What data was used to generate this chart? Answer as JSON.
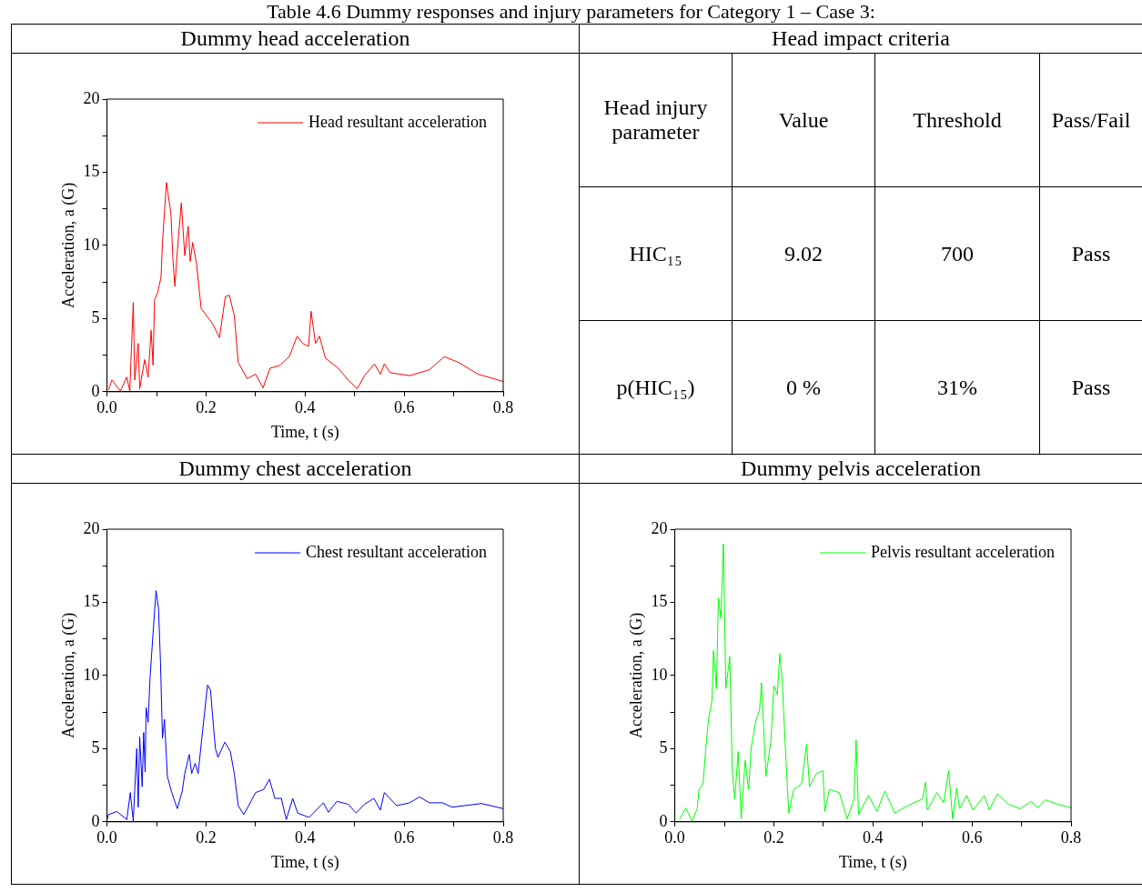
{
  "chart_data": [
    {
      "type": "other",
      "title": "Table 4.6 Dummy responses and injury parameters for Category 1 – Case 3:"
    },
    {
      "type": "line",
      "title": "Dummy head acceleration",
      "xlabel": "Time, t (s)",
      "ylabel": "Acceleration, a (G)",
      "xlim": [
        0,
        0.8
      ],
      "ylim": [
        0,
        20
      ],
      "xticks": [
        {
          "value": 0,
          "label": "0.0"
        },
        {
          "value": 0.1,
          "label": null
        },
        0.2,
        {
          "value": 0.3,
          "label": null
        },
        0.4,
        {
          "value": 0.5,
          "label": null
        },
        0.6,
        {
          "value": 0.7,
          "label": null
        },
        0.8
      ],
      "yticks": [
        0,
        {
          "value": 2.5,
          "label": null
        },
        5,
        {
          "value": 7.5,
          "label": null
        },
        10,
        {
          "value": 12.5,
          "label": null
        },
        15,
        {
          "value": 17.5,
          "label": null
        },
        20
      ],
      "grid": false,
      "legend": "top right",
      "series": [
        {
          "name": "Head resultant acceleration",
          "color": "#ff0000",
          "x": [
            0.003,
            0.01,
            0.027,
            0.04,
            0.046,
            0.053,
            0.056,
            0.063,
            0.066,
            0.076,
            0.083,
            0.089,
            0.093,
            0.096,
            0.102,
            0.109,
            0.112,
            0.12,
            0.129,
            0.133,
            0.137,
            0.142,
            0.15,
            0.157,
            0.164,
            0.168,
            0.173,
            0.181,
            0.19,
            0.201,
            0.214,
            0.227,
            0.239,
            0.247,
            0.257,
            0.265,
            0.283,
            0.3,
            0.315,
            0.329,
            0.349,
            0.368,
            0.384,
            0.395,
            0.407,
            0.412,
            0.421,
            0.429,
            0.441,
            0.467,
            0.487,
            0.505,
            0.52,
            0.54,
            0.552,
            0.56,
            0.572,
            0.611,
            0.651,
            0.681,
            0.71,
            0.749,
            0.8
          ],
          "values": [
            0.15,
            0.8,
            0.05,
            1.0,
            0.05,
            6.1,
            0.8,
            3.3,
            0.2,
            2.2,
            1.0,
            4.2,
            1.8,
            6.3,
            6.75,
            7.8,
            10.2,
            14.3,
            12.2,
            9.1,
            7.2,
            9.6,
            12.9,
            9.3,
            11.3,
            8.9,
            10.2,
            8.7,
            5.7,
            5.2,
            4.6,
            3.7,
            6.5,
            6.6,
            5.2,
            2.0,
            0.9,
            1.2,
            0.26,
            1.6,
            1.8,
            2.4,
            3.8,
            3.3,
            3.1,
            5.5,
            3.3,
            3.8,
            2.3,
            1.6,
            0.8,
            0.2,
            1.1,
            1.9,
            1.2,
            1.9,
            1.3,
            1.1,
            1.5,
            2.4,
            2.0,
            1.2,
            0.7
          ]
        }
      ]
    },
    {
      "type": "other",
      "title": "Head impact criteria",
      "annotations": [
        "Head injury parameter",
        "Value",
        "Threshold",
        "Pass/Fail",
        "HIC₁₅",
        "9.02",
        "700",
        "Pass",
        "p(HIC₁₅)",
        "0 %",
        "31%",
        "Pass"
      ]
    },
    {
      "type": "line",
      "title": "Dummy chest acceleration",
      "xlabel": "Time, t (s)",
      "ylabel": "Acceleration, a (G)",
      "xlim": [
        0,
        0.8
      ],
      "ylim": [
        0,
        20
      ],
      "xticks": [
        {
          "value": 0,
          "label": "0.0"
        },
        {
          "value": 0.1,
          "label": null
        },
        0.2,
        {
          "value": 0.3,
          "label": null
        },
        0.4,
        {
          "value": 0.5,
          "label": null
        },
        0.6,
        {
          "value": 0.7,
          "label": null
        },
        0.8
      ],
      "yticks": [
        0,
        {
          "value": 2.5,
          "label": null
        },
        5,
        {
          "value": 7.5,
          "label": null
        },
        10,
        {
          "value": 12.5,
          "label": null
        },
        15,
        {
          "value": 17.5,
          "label": null
        },
        20
      ],
      "grid": false,
      "legend": "top right",
      "series": [
        {
          "name": "Chest resultant acceleration",
          "color": "#0000ff",
          "x": [
            0.0,
            0.003,
            0.02,
            0.04,
            0.047,
            0.053,
            0.06,
            0.063,
            0.066,
            0.071,
            0.074,
            0.077,
            0.079,
            0.083,
            0.087,
            0.094,
            0.099,
            0.104,
            0.108,
            0.112,
            0.116,
            0.122,
            0.129,
            0.135,
            0.142,
            0.152,
            0.157,
            0.166,
            0.171,
            0.178,
            0.184,
            0.193,
            0.203,
            0.209,
            0.215,
            0.219,
            0.224,
            0.238,
            0.249,
            0.257,
            0.265,
            0.276,
            0.286,
            0.3,
            0.316,
            0.328,
            0.339,
            0.352,
            0.362,
            0.375,
            0.385,
            0.408,
            0.437,
            0.447,
            0.464,
            0.487,
            0.503,
            0.52,
            0.539,
            0.552,
            0.56,
            0.585,
            0.611,
            0.631,
            0.651,
            0.677,
            0.697,
            0.756,
            0.8
          ],
          "values": [
            0.15,
            0.5,
            0.7,
            0.15,
            2.0,
            0.05,
            5.0,
            1.0,
            5.8,
            2.4,
            6.1,
            3.4,
            7.8,
            6.8,
            9.9,
            13.4,
            15.8,
            14.6,
            10.9,
            5.7,
            7.0,
            3.1,
            2.2,
            1.56,
            0.9,
            2.1,
            3.3,
            4.6,
            3.3,
            4.0,
            3.3,
            6.2,
            9.35,
            9.0,
            6.5,
            5.0,
            4.4,
            5.45,
            4.8,
            3.3,
            1.1,
            0.5,
            1.1,
            2.0,
            2.2,
            2.9,
            1.6,
            1.6,
            0.15,
            1.6,
            0.6,
            0.3,
            1.3,
            0.65,
            1.4,
            1.2,
            0.6,
            1.2,
            1.6,
            0.8,
            2.0,
            1.1,
            1.3,
            1.7,
            1.3,
            1.3,
            1.0,
            1.25,
            0.9
          ]
        }
      ]
    },
    {
      "type": "line",
      "title": "Dummy pelvis acceleration",
      "xlabel": "Time, t (s)",
      "ylabel": "Acceleration, a (G)",
      "xlim": [
        0,
        0.8
      ],
      "ylim": [
        0,
        20
      ],
      "xticks": [
        {
          "value": 0,
          "label": "0.0"
        },
        {
          "value": 0.1,
          "label": null
        },
        0.2,
        {
          "value": 0.3,
          "label": null
        },
        0.4,
        {
          "value": 0.5,
          "label": null
        },
        0.6,
        {
          "value": 0.7,
          "label": null
        },
        0.8
      ],
      "yticks": [
        0,
        {
          "value": 2.5,
          "label": null
        },
        5,
        {
          "value": 7.5,
          "label": null
        },
        10,
        {
          "value": 12.5,
          "label": null
        },
        15,
        {
          "value": 17.5,
          "label": null
        },
        20
      ],
      "grid": false,
      "legend": "top right",
      "series": [
        {
          "name": "Pelvis resultant acceleration",
          "color": "#00ff00",
          "x": [
            0.01,
            0.022,
            0.035,
            0.045,
            0.049,
            0.057,
            0.062,
            0.068,
            0.075,
            0.078,
            0.084,
            0.088,
            0.093,
            0.098,
            0.103,
            0.111,
            0.116,
            0.121,
            0.128,
            0.134,
            0.142,
            0.149,
            0.154,
            0.164,
            0.171,
            0.175,
            0.184,
            0.194,
            0.2,
            0.207,
            0.212,
            0.217,
            0.223,
            0.23,
            0.24,
            0.256,
            0.266,
            0.272,
            0.286,
            0.299,
            0.303,
            0.312,
            0.332,
            0.348,
            0.362,
            0.366,
            0.371,
            0.391,
            0.408,
            0.424,
            0.444,
            0.47,
            0.5,
            0.506,
            0.51,
            0.529,
            0.543,
            0.553,
            0.561,
            0.569,
            0.575,
            0.589,
            0.602,
            0.625,
            0.635,
            0.651,
            0.674,
            0.697,
            0.72,
            0.733,
            0.748,
            0.773,
            0.8
          ],
          "values": [
            0.2,
            0.95,
            0.05,
            0.9,
            2.2,
            2.6,
            4.8,
            7.0,
            8.3,
            11.7,
            9.1,
            15.3,
            13.9,
            19.0,
            9.1,
            11.3,
            3.5,
            1.56,
            4.8,
            0.2,
            4.2,
            2.2,
            5.0,
            7.0,
            7.6,
            9.5,
            3.1,
            5.5,
            9.3,
            8.7,
            11.5,
            9.6,
            5.2,
            0.6,
            2.2,
            2.6,
            5.3,
            2.4,
            3.3,
            3.5,
            0.7,
            2.2,
            2.0,
            0.2,
            1.56,
            5.6,
            0.5,
            1.8,
            0.7,
            2.1,
            0.6,
            1.1,
            1.56,
            2.7,
            0.8,
            2.0,
            1.3,
            3.5,
            0.2,
            2.3,
            0.9,
            1.8,
            0.8,
            1.8,
            0.8,
            1.9,
            1.2,
            0.9,
            1.4,
            0.95,
            1.5,
            1.2,
            0.95
          ]
        }
      ]
    }
  ]
}
